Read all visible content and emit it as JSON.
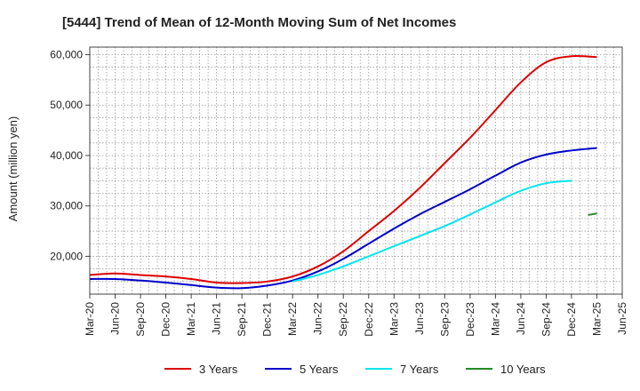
{
  "chart_data": {
    "type": "line",
    "title": "[5444]  Trend of Mean of 12-Month Moving Sum of Net Incomes",
    "xlabel": "",
    "ylabel": "Amount (million yen)",
    "x_categories": [
      "Mar-20",
      "Jun-20",
      "Sep-20",
      "Dec-20",
      "Mar-21",
      "Jun-21",
      "Sep-21",
      "Dec-21",
      "Mar-22",
      "Jun-22",
      "Sep-22",
      "Dec-22",
      "Mar-23",
      "Jun-23",
      "Sep-23",
      "Dec-23",
      "Mar-24",
      "Jun-24",
      "Sep-24",
      "Dec-24",
      "Mar-25",
      "Jun-25"
    ],
    "ylim": [
      12500,
      61500
    ],
    "yticks": [
      20000,
      30000,
      40000,
      50000,
      60000
    ],
    "ytick_labels": [
      "20,000",
      "30,000",
      "40,000",
      "50,000",
      "60,000"
    ],
    "grid": true,
    "legend_position": "bottom",
    "series": [
      {
        "name": "3 Years",
        "color": "#dd0000",
        "start_index": 0,
        "values": [
          16300,
          16600,
          16300,
          16000,
          15500,
          14800,
          14700,
          15000,
          16000,
          18000,
          21000,
          25000,
          29000,
          33500,
          38500,
          43500,
          49000,
          54500,
          58500,
          59700,
          59500
        ]
      },
      {
        "name": "5 Years",
        "color": "#0000cc",
        "start_index": 0,
        "values": [
          15500,
          15500,
          15200,
          14800,
          14300,
          13800,
          13700,
          14200,
          15200,
          17000,
          19500,
          22500,
          25500,
          28300,
          30800,
          33300,
          36000,
          38600,
          40200,
          41000,
          41500
        ]
      },
      {
        "name": "7 Years",
        "color": "#00e5ee",
        "start_index": 8,
        "values": [
          15000,
          16300,
          18000,
          20000,
          22000,
          24000,
          26000,
          28300,
          30700,
          33000,
          34500,
          35000
        ]
      },
      {
        "name": "10 Years",
        "color": "#228b22",
        "start_index": 19.65,
        "values": [
          28200,
          28500
        ]
      }
    ]
  }
}
